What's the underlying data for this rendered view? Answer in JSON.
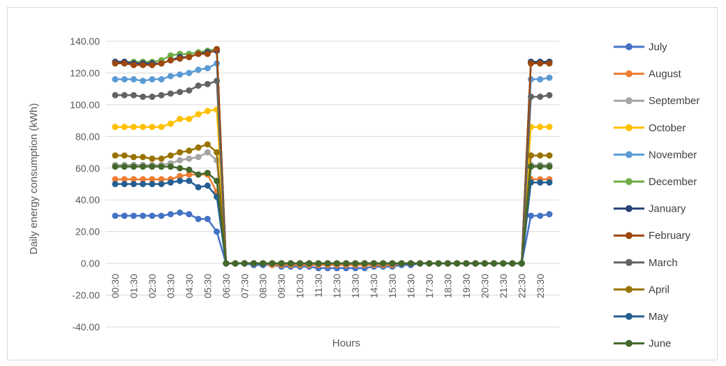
{
  "chart_data": {
    "type": "line",
    "xlabel": "Hours",
    "ylabel": "Daily energy consumption (kWh)",
    "ylim": [
      -40,
      140
    ],
    "y_ticks": [
      "140.00",
      "120.00",
      "100.00",
      "80.00",
      "60.00",
      "40.00",
      "20.00",
      "0.00",
      "-20.00",
      "-40.00"
    ],
    "y_tick_values": [
      140,
      120,
      100,
      80,
      60,
      40,
      20,
      0,
      -20,
      -40
    ],
    "gridlines": true,
    "legend_position": "right",
    "x": [
      "00:30",
      "01:00",
      "01:30",
      "02:00",
      "02:30",
      "03:00",
      "03:30",
      "04:00",
      "04:30",
      "05:00",
      "05:30",
      "06:00",
      "06:30",
      "07:00",
      "07:30",
      "08:00",
      "08:30",
      "09:00",
      "09:30",
      "10:00",
      "10:30",
      "11:00",
      "11:30",
      "12:00",
      "12:30",
      "13:00",
      "13:30",
      "14:00",
      "14:30",
      "15:00",
      "15:30",
      "16:00",
      "16:30",
      "17:00",
      "17:30",
      "18:00",
      "18:30",
      "19:00",
      "19:30",
      "20:00",
      "20:30",
      "21:00",
      "21:30",
      "22:00",
      "22:30",
      "23:00",
      "23:30",
      "24:00"
    ],
    "x_tick_labels": [
      "00:30",
      "01:30",
      "02:30",
      "03:30",
      "04:30",
      "05:30",
      "06:30",
      "07:30",
      "08:30",
      "09:30",
      "10:30",
      "11:30",
      "12:30",
      "13:30",
      "14:30",
      "15:30",
      "16:30",
      "17:30",
      "18:30",
      "19:30",
      "20:30",
      "21:30",
      "22:30",
      "23:30"
    ],
    "series": [
      {
        "name": "July",
        "color": "#4472C4",
        "values": [
          30,
          30,
          30,
          30,
          30,
          30,
          31,
          32,
          31,
          28,
          28,
          20,
          0,
          0,
          0,
          -1,
          -1,
          -1,
          -2,
          -2,
          -2,
          -2,
          -3,
          -3,
          -3,
          -3,
          -3,
          -3,
          -2,
          -2,
          -2,
          -1,
          -1,
          0,
          0,
          0,
          0,
          0,
          0,
          0,
          0,
          0,
          0,
          0,
          0,
          30,
          30,
          31
        ]
      },
      {
        "name": "August",
        "color": "#ED7D31",
        "values": [
          53,
          53,
          53,
          53,
          53,
          53,
          53,
          55,
          56,
          56,
          56,
          45,
          0,
          0,
          0,
          0,
          0,
          -1,
          -1,
          -1,
          -1,
          -1,
          -1,
          -1,
          -1,
          -1,
          -1,
          -1,
          -1,
          -1,
          -1,
          0,
          0,
          0,
          0,
          0,
          0,
          0,
          0,
          0,
          0,
          0,
          0,
          0,
          0,
          53,
          53,
          53
        ]
      },
      {
        "name": "September",
        "color": "#A5A5A5",
        "values": [
          62,
          62,
          62,
          62,
          62,
          62,
          63,
          65,
          66,
          67,
          70,
          65,
          0,
          0,
          0,
          0,
          0,
          0,
          0,
          0,
          0,
          0,
          0,
          0,
          0,
          0,
          0,
          0,
          0,
          0,
          0,
          0,
          0,
          0,
          0,
          0,
          0,
          0,
          0,
          0,
          0,
          0,
          0,
          0,
          0,
          62,
          62,
          62
        ]
      },
      {
        "name": "October",
        "color": "#FFC000",
        "values": [
          86,
          86,
          86,
          86,
          86,
          86,
          88,
          91,
          91,
          94,
          96,
          97,
          0,
          0,
          0,
          0,
          0,
          0,
          0,
          0,
          0,
          0,
          0,
          0,
          0,
          0,
          0,
          0,
          0,
          0,
          0,
          0,
          0,
          0,
          0,
          0,
          0,
          0,
          0,
          0,
          0,
          0,
          0,
          0,
          0,
          86,
          86,
          86
        ]
      },
      {
        "name": "November",
        "color": "#5B9BD5",
        "values": [
          116,
          116,
          116,
          115,
          116,
          116,
          118,
          119,
          120,
          122,
          123,
          126,
          0,
          0,
          0,
          0,
          0,
          0,
          0,
          0,
          0,
          0,
          0,
          0,
          0,
          0,
          0,
          0,
          0,
          0,
          0,
          0,
          0,
          0,
          0,
          0,
          0,
          0,
          0,
          0,
          0,
          0,
          0,
          0,
          0,
          116,
          116,
          117
        ]
      },
      {
        "name": "December",
        "color": "#70AD47",
        "values": [
          127,
          127,
          127,
          127,
          127,
          128,
          131,
          132,
          132,
          133,
          134,
          135,
          0,
          0,
          0,
          0,
          0,
          0,
          0,
          0,
          0,
          0,
          0,
          0,
          0,
          0,
          0,
          0,
          0,
          0,
          0,
          0,
          0,
          0,
          0,
          0,
          0,
          0,
          0,
          0,
          0,
          0,
          0,
          0,
          0,
          127,
          127,
          127
        ]
      },
      {
        "name": "January",
        "color": "#264478",
        "values": [
          127,
          127,
          126,
          126,
          126,
          126,
          128,
          130,
          130,
          132,
          133,
          134,
          0,
          0,
          0,
          0,
          0,
          0,
          0,
          0,
          0,
          0,
          0,
          0,
          0,
          0,
          0,
          0,
          0,
          0,
          0,
          0,
          0,
          0,
          0,
          0,
          0,
          0,
          0,
          0,
          0,
          0,
          0,
          0,
          0,
          127,
          127,
          127
        ]
      },
      {
        "name": "February",
        "color": "#9E480E",
        "values": [
          126,
          126,
          125,
          125,
          125,
          126,
          128,
          129,
          130,
          132,
          132,
          135,
          0,
          0,
          0,
          0,
          0,
          0,
          0,
          0,
          0,
          0,
          0,
          0,
          0,
          0,
          0,
          0,
          0,
          0,
          0,
          0,
          0,
          0,
          0,
          0,
          0,
          0,
          0,
          0,
          0,
          0,
          0,
          0,
          0,
          126,
          126,
          126
        ]
      },
      {
        "name": "March",
        "color": "#636363",
        "values": [
          106,
          106,
          106,
          105,
          105,
          106,
          107,
          108,
          109,
          112,
          113,
          115,
          0,
          0,
          0,
          0,
          0,
          0,
          0,
          0,
          0,
          0,
          0,
          0,
          0,
          0,
          0,
          0,
          0,
          0,
          0,
          0,
          0,
          0,
          0,
          0,
          0,
          0,
          0,
          0,
          0,
          0,
          0,
          0,
          0,
          105,
          105,
          106
        ]
      },
      {
        "name": "April",
        "color": "#997300",
        "values": [
          68,
          68,
          67,
          67,
          66,
          66,
          68,
          70,
          71,
          73,
          75,
          70,
          0,
          0,
          0,
          0,
          0,
          0,
          0,
          0,
          0,
          0,
          0,
          0,
          0,
          0,
          0,
          0,
          0,
          0,
          0,
          0,
          0,
          0,
          0,
          0,
          0,
          0,
          0,
          0,
          0,
          0,
          0,
          0,
          0,
          68,
          68,
          68
        ]
      },
      {
        "name": "May",
        "color": "#255E91",
        "values": [
          50,
          50,
          50,
          50,
          50,
          50,
          51,
          52,
          52,
          48,
          49,
          42,
          0,
          0,
          0,
          0,
          0,
          0,
          0,
          0,
          0,
          0,
          0,
          0,
          0,
          0,
          0,
          0,
          0,
          0,
          0,
          0,
          0,
          0,
          0,
          0,
          0,
          0,
          0,
          0,
          0,
          0,
          0,
          0,
          0,
          51,
          51,
          51
        ]
      },
      {
        "name": "June",
        "color": "#43682B",
        "values": [
          61,
          61,
          61,
          61,
          61,
          61,
          61,
          60,
          59,
          56,
          57,
          52,
          0,
          0,
          0,
          0,
          0,
          0,
          0,
          0,
          0,
          0,
          0,
          0,
          0,
          0,
          0,
          0,
          0,
          0,
          0,
          0,
          0,
          0,
          0,
          0,
          0,
          0,
          0,
          0,
          0,
          0,
          0,
          0,
          0,
          61,
          61,
          61
        ]
      }
    ]
  }
}
